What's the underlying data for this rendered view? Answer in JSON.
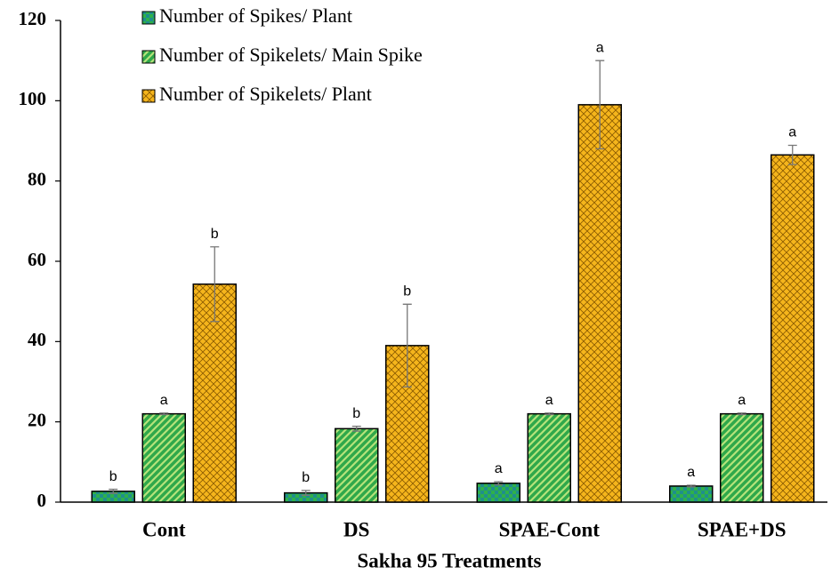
{
  "chart_data": {
    "type": "bar",
    "x_label": "Sakha 95 Treatments",
    "categories": [
      "Cont",
      "DS",
      "SPAE-Cont",
      "SPAE+DS"
    ],
    "series": [
      {
        "name": "Number of Spikes/ Plant",
        "color": "#1f8f8c",
        "accent": "#2fb14a",
        "values": [
          2.7,
          2.3,
          4.7,
          4.0
        ],
        "errors": [
          0.5,
          0.6,
          0.4,
          0.2
        ],
        "letters": [
          "b",
          "b",
          "a",
          "a"
        ]
      },
      {
        "name": "Number of Spikelets/ Main Spike",
        "color": "#2fa84a",
        "accent": "#b5e37a",
        "values": [
          22,
          18.3,
          22,
          22
        ],
        "errors": [
          0.2,
          0.6,
          0.2,
          0.2
        ],
        "letters": [
          "a",
          "b",
          "a",
          "a"
        ]
      },
      {
        "name": "Number of Spikelets/ Plant",
        "color": "#f5b51c",
        "accent": "#ffe08a",
        "values": [
          54.3,
          39,
          99,
          86.5
        ],
        "errors": [
          9.3,
          10.3,
          11,
          2.4
        ],
        "letters": [
          "b",
          "b",
          "a",
          "a"
        ]
      }
    ],
    "ylim": [
      0,
      120
    ],
    "yticks": [
      0,
      20,
      40,
      60,
      80,
      100,
      120
    ],
    "legend": "upper-left"
  }
}
